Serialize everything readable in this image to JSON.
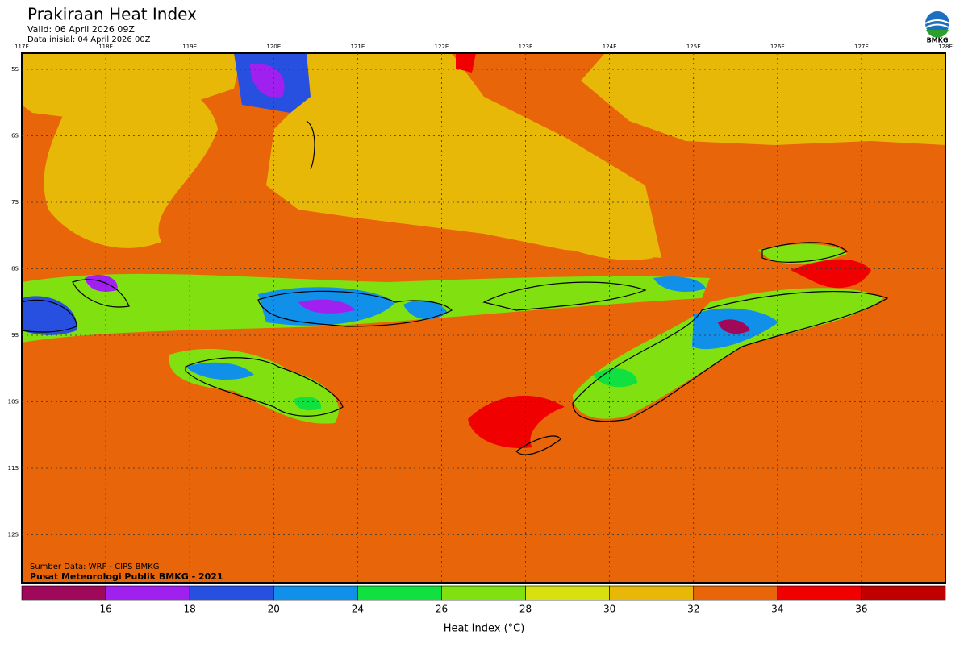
{
  "header": {
    "title": "Prakiraan Heat Index",
    "valid": "Valid: 06 April 2026 09Z",
    "initial": "Data inisial: 04 April 2026 00Z",
    "logo": "BMKG"
  },
  "map": {
    "longitudes": [
      "117E",
      "118E",
      "119E",
      "120E",
      "121E",
      "122E",
      "123E",
      "124E",
      "125E",
      "126E",
      "127E",
      "128E"
    ],
    "latitudes": [
      "5S",
      "6S",
      "7S",
      "8S",
      "9S",
      "10S",
      "11S",
      "12S"
    ],
    "source": "Sumber Data: WRF - CIPS BMKG",
    "credit": "Pusat Meteorologi Publik BMKG - 2021"
  },
  "legend": {
    "colors": [
      "#a0085a",
      "#a020f0",
      "#2850e0",
      "#1090e8",
      "#10e040",
      "#80e010",
      "#d8e010",
      "#e8b808",
      "#e8650a",
      "#f00000",
      "#c00000"
    ],
    "ticks": [
      16,
      18,
      20,
      24,
      26,
      28,
      30,
      32,
      34,
      36
    ],
    "label": "Heat Index (°C)"
  }
}
